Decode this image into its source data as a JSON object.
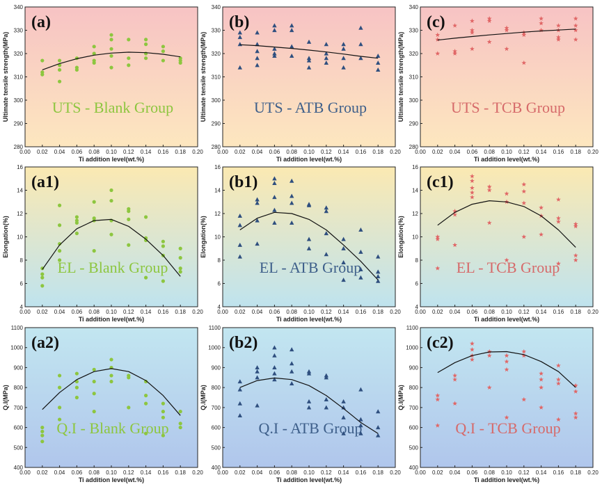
{
  "x_axis_title": "Ti addition level(wt.%)",
  "chart_data": [
    {
      "id": "a",
      "type": "scatter",
      "tag": "(a)",
      "label": "UTS - Blank Group",
      "ylabel": "Ultimate tensile strength(MPa)",
      "ylim": [
        280,
        340
      ],
      "yticks": [
        280,
        290,
        300,
        310,
        320,
        330,
        340
      ],
      "xlim": [
        0,
        0.2
      ],
      "xticks": [
        "0.00",
        "0.02",
        "0.04",
        "0.06",
        "0.08",
        "0.10",
        "0.12",
        "0.14",
        "0.16",
        "0.18",
        "0.20"
      ],
      "marker": "circle",
      "color": "#8dc63f",
      "label_color": "#8dc63f",
      "bg": [
        "#f7c3c4",
        "#fde7bf"
      ],
      "x": [
        0.02,
        0.02,
        0.02,
        0.04,
        0.04,
        0.04,
        0.04,
        0.06,
        0.06,
        0.06,
        0.08,
        0.08,
        0.08,
        0.08,
        0.1,
        0.1,
        0.1,
        0.1,
        0.1,
        0.12,
        0.12,
        0.12,
        0.14,
        0.14,
        0.14,
        0.14,
        0.16,
        0.16,
        0.16,
        0.18,
        0.18,
        0.18
      ],
      "y": [
        317,
        312,
        311,
        317,
        315,
        313,
        308,
        318,
        314,
        313,
        323,
        317,
        316,
        320,
        328,
        326,
        322,
        319,
        314,
        326,
        318,
        315,
        326,
        324,
        320,
        318,
        323,
        321,
        317,
        318,
        317,
        316
      ],
      "fit": {
        "x": [
          0.02,
          0.04,
          0.06,
          0.08,
          0.1,
          0.12,
          0.14,
          0.16,
          0.18
        ],
        "y": [
          313.0,
          315.7,
          317.8,
          319.3,
          320.2,
          320.6,
          320.4,
          319.7,
          318.6
        ]
      }
    },
    {
      "id": "b",
      "type": "scatter",
      "tag": "(b)",
      "label": "UTS - ATB Group",
      "ylabel": "Ultimate tensile strength(MPa)",
      "ylim": [
        280,
        340
      ],
      "yticks": [
        280,
        290,
        300,
        310,
        320,
        330,
        340
      ],
      "xlim": [
        0,
        0.2
      ],
      "xticks": [
        "0.00",
        "0.02",
        "0.04",
        "0.06",
        "0.08",
        "0.10",
        "0.12",
        "0.14",
        "0.16",
        "0.18",
        "0.20"
      ],
      "marker": "triangle",
      "color": "#2f4f7f",
      "label_color": "#3e5f8a",
      "bg": [
        "#f7c3c4",
        "#fde7bf"
      ],
      "x": [
        0.02,
        0.02,
        0.02,
        0.02,
        0.04,
        0.04,
        0.04,
        0.04,
        0.04,
        0.06,
        0.06,
        0.06,
        0.06,
        0.06,
        0.08,
        0.08,
        0.08,
        0.08,
        0.1,
        0.1,
        0.1,
        0.1,
        0.12,
        0.12,
        0.12,
        0.12,
        0.14,
        0.14,
        0.14,
        0.14,
        0.16,
        0.16,
        0.16,
        0.18,
        0.18,
        0.18
      ],
      "y": [
        329,
        327,
        324,
        314,
        329,
        324,
        321,
        318,
        315,
        332,
        330,
        322,
        320,
        319,
        332,
        330,
        323,
        319,
        325,
        318,
        317,
        314,
        324,
        320,
        318,
        316,
        324,
        322,
        318,
        314,
        331,
        324,
        318,
        319,
        316,
        313
      ],
      "fit": {
        "x": [
          0.02,
          0.04,
          0.06,
          0.08,
          0.1,
          0.12,
          0.14,
          0.16,
          0.18
        ],
        "y": [
          323.8,
          323.4,
          322.8,
          322.2,
          321.5,
          320.7,
          319.8,
          318.8,
          318.0
        ]
      }
    },
    {
      "id": "c",
      "type": "scatter",
      "tag": "(c)",
      "label": "UTS - TCB Group",
      "ylabel": "Ultimate tensile strength(MPa)",
      "ylim": [
        280,
        340
      ],
      "yticks": [
        280,
        290,
        300,
        310,
        320,
        330,
        340
      ],
      "xlim": [
        0,
        0.2
      ],
      "xticks": [
        "0.00",
        "0.02",
        "0.04",
        "0.06",
        "0.08",
        "0.10",
        "0.12",
        "0.14",
        "0.16",
        "0.18",
        "0.20"
      ],
      "marker": "star",
      "color": "#e06666",
      "label_color": "#d66a6a",
      "bg": [
        "#f7c3c4",
        "#fde7bf"
      ],
      "x": [
        0.02,
        0.02,
        0.02,
        0.04,
        0.04,
        0.04,
        0.06,
        0.06,
        0.06,
        0.06,
        0.08,
        0.08,
        0.08,
        0.1,
        0.1,
        0.1,
        0.12,
        0.12,
        0.12,
        0.14,
        0.14,
        0.14,
        0.16,
        0.16,
        0.16,
        0.16,
        0.18,
        0.18,
        0.18,
        0.18
      ],
      "y": [
        328,
        326,
        320,
        332,
        321,
        320,
        334,
        330,
        329,
        322,
        335,
        334,
        325,
        331,
        330,
        322,
        329,
        328,
        316,
        335,
        333,
        330,
        332,
        330,
        327,
        326,
        335,
        332,
        330,
        326
      ],
      "fit": {
        "x": [
          0.02,
          0.04,
          0.06,
          0.08,
          0.1,
          0.12,
          0.14,
          0.16,
          0.18
        ],
        "y": [
          325.8,
          326.6,
          327.3,
          328.0,
          328.6,
          329.2,
          329.7,
          330.1,
          330.5
        ]
      }
    },
    {
      "id": "a1",
      "type": "scatter",
      "tag": "(a1)",
      "label": "EL - Blank Group",
      "ylabel": "Elongation(%)",
      "ylim": [
        4,
        16
      ],
      "yticks": [
        4,
        6,
        8,
        10,
        12,
        14,
        16
      ],
      "xlim": [
        0,
        0.2
      ],
      "xticks": [
        "0.00",
        "0.02",
        "0.04",
        "0.06",
        "0.08",
        "0.10",
        "0.12",
        "0.14",
        "0.16",
        "0.18",
        "0.20"
      ],
      "marker": "circle",
      "color": "#8dc63f",
      "label_color": "#8dc63f",
      "bg": [
        "#fbe9b2",
        "#bfe3ee"
      ],
      "x": [
        0.02,
        0.02,
        0.02,
        0.02,
        0.04,
        0.04,
        0.04,
        0.04,
        0.04,
        0.06,
        0.06,
        0.06,
        0.06,
        0.08,
        0.08,
        0.08,
        0.08,
        0.1,
        0.1,
        0.1,
        0.1,
        0.12,
        0.12,
        0.12,
        0.12,
        0.14,
        0.14,
        0.14,
        0.14,
        0.16,
        0.16,
        0.16,
        0.16,
        0.18,
        0.18,
        0.18,
        0.18
      ],
      "y": [
        7.3,
        6.8,
        6.5,
        5.8,
        12.7,
        11.0,
        9.4,
        8.8,
        8.0,
        11.7,
        11.4,
        11.2,
        10.3,
        13.0,
        11.6,
        11.4,
        8.8,
        14.0,
        13.1,
        11.4,
        10.2,
        12.4,
        12.2,
        11.5,
        9.3,
        11.7,
        9.9,
        9.7,
        6.5,
        9.6,
        9.2,
        8.4,
        6.2,
        9.0,
        8.2,
        7.3,
        7.0
      ],
      "fit": {
        "x": [
          0.02,
          0.04,
          0.06,
          0.08,
          0.1,
          0.12,
          0.14,
          0.16,
          0.18
        ],
        "y": [
          7.2,
          9.3,
          10.7,
          11.4,
          11.5,
          10.9,
          9.8,
          8.4,
          6.6
        ]
      }
    },
    {
      "id": "b1",
      "type": "scatter",
      "tag": "(b1)",
      "label": "EL - ATB Group",
      "ylabel": "Elongation(%)",
      "ylim": [
        4,
        16
      ],
      "yticks": [
        4,
        6,
        8,
        10,
        12,
        14,
        16
      ],
      "xlim": [
        0,
        0.2
      ],
      "xticks": [
        "0.00",
        "0.02",
        "0.04",
        "0.06",
        "0.08",
        "0.10",
        "0.12",
        "0.14",
        "0.16",
        "0.18",
        "0.20"
      ],
      "marker": "triangle",
      "color": "#2f4f7f",
      "label_color": "#3e5f8a",
      "bg": [
        "#fbe9b2",
        "#bfe3ee"
      ],
      "x": [
        0.02,
        0.02,
        0.02,
        0.02,
        0.04,
        0.04,
        0.04,
        0.04,
        0.06,
        0.06,
        0.06,
        0.06,
        0.06,
        0.08,
        0.08,
        0.08,
        0.08,
        0.1,
        0.1,
        0.1,
        0.1,
        0.12,
        0.12,
        0.12,
        0.12,
        0.14,
        0.14,
        0.14,
        0.14,
        0.16,
        0.16,
        0.16,
        0.16,
        0.18,
        0.18,
        0.18,
        0.18
      ],
      "y": [
        11.8,
        11.0,
        9.3,
        8.3,
        13.2,
        12.9,
        11.4,
        9.4,
        15.0,
        14.6,
        13.4,
        12.3,
        11.2,
        14.8,
        13.5,
        12.9,
        11.2,
        12.8,
        12.7,
        9.8,
        9.0,
        12.5,
        12.2,
        10.3,
        8.5,
        9.8,
        9.0,
        7.8,
        6.3,
        10.6,
        8.7,
        7.2,
        6.5,
        8.3,
        7.0,
        6.6,
        6.2
      ],
      "fit": {
        "x": [
          0.02,
          0.04,
          0.06,
          0.08,
          0.1,
          0.12,
          0.14,
          0.16,
          0.18
        ],
        "y": [
          10.6,
          11.6,
          12.1,
          12.0,
          11.5,
          10.6,
          9.3,
          7.9,
          6.3
        ]
      }
    },
    {
      "id": "c1",
      "type": "scatter",
      "tag": "(c1)",
      "label": "EL - TCB Group",
      "ylabel": "Elongation(%)",
      "ylim": [
        4,
        16
      ],
      "yticks": [
        4,
        6,
        8,
        10,
        12,
        14,
        16
      ],
      "xlim": [
        0,
        0.2
      ],
      "xticks": [
        "0.00",
        "0.02",
        "0.04",
        "0.06",
        "0.08",
        "0.10",
        "0.12",
        "0.14",
        "0.16",
        "0.18",
        "0.20"
      ],
      "marker": "star",
      "color": "#e06666",
      "label_color": "#d66a6a",
      "bg": [
        "#fbe9b2",
        "#bfe3ee"
      ],
      "x": [
        0.02,
        0.02,
        0.02,
        0.04,
        0.04,
        0.04,
        0.06,
        0.06,
        0.06,
        0.06,
        0.06,
        0.08,
        0.08,
        0.08,
        0.1,
        0.1,
        0.1,
        0.12,
        0.12,
        0.12,
        0.12,
        0.14,
        0.14,
        0.14,
        0.16,
        0.16,
        0.16,
        0.16,
        0.18,
        0.18,
        0.18,
        0.18
      ],
      "y": [
        10.0,
        9.8,
        7.3,
        12.2,
        11.9,
        9.3,
        15.2,
        14.8,
        14.2,
        13.8,
        13.4,
        14.3,
        14.0,
        11.2,
        13.7,
        13.0,
        8.0,
        14.5,
        13.9,
        12.9,
        10.0,
        12.5,
        11.8,
        10.2,
        13.2,
        11.6,
        11.3,
        7.7,
        11.1,
        10.9,
        8.4,
        8.0
      ],
      "fit": {
        "x": [
          0.02,
          0.04,
          0.06,
          0.08,
          0.1,
          0.12,
          0.14,
          0.16,
          0.18
        ],
        "y": [
          11.0,
          12.1,
          12.8,
          13.1,
          13.0,
          12.6,
          11.8,
          10.6,
          9.1
        ]
      }
    },
    {
      "id": "a2",
      "type": "scatter",
      "tag": "(a2)",
      "label": "Q.I - Blank Group",
      "ylabel": "Q.I(MPa)",
      "ylim": [
        400,
        1100
      ],
      "yticks": [
        400,
        500,
        600,
        700,
        800,
        900,
        1000,
        1100
      ],
      "xlim": [
        0,
        0.2
      ],
      "xticks": [
        "0.00",
        "0.02",
        "0.04",
        "0.06",
        "0.08",
        "0.10",
        "0.12",
        "0.14",
        "0.16",
        "0.18",
        "0.20"
      ],
      "marker": "circle",
      "color": "#8dc63f",
      "label_color": "#8dc63f",
      "bg": [
        "#c2e6f0",
        "#b0c6ec"
      ],
      "x": [
        0.02,
        0.02,
        0.02,
        0.02,
        0.04,
        0.04,
        0.04,
        0.04,
        0.06,
        0.06,
        0.06,
        0.06,
        0.08,
        0.08,
        0.08,
        0.08,
        0.1,
        0.1,
        0.1,
        0.1,
        0.12,
        0.12,
        0.12,
        0.14,
        0.14,
        0.14,
        0.14,
        0.16,
        0.16,
        0.16,
        0.16,
        0.18,
        0.18,
        0.18
      ],
      "y": [
        600,
        580,
        560,
        530,
        860,
        800,
        700,
        640,
        870,
        830,
        800,
        750,
        890,
        830,
        770,
        680,
        940,
        900,
        860,
        830,
        860,
        850,
        700,
        830,
        760,
        720,
        570,
        720,
        680,
        650,
        560,
        680,
        620,
        600
      ],
      "fit": {
        "x": [
          0.02,
          0.04,
          0.06,
          0.08,
          0.1,
          0.12,
          0.14,
          0.16,
          0.18
        ],
        "y": [
          690,
          775,
          840,
          880,
          895,
          880,
          835,
          760,
          660
        ]
      }
    },
    {
      "id": "b2",
      "type": "scatter",
      "tag": "(b2)",
      "label": "Q.I - ATB Group",
      "ylabel": "Q.I(MPa)",
      "ylim": [
        400,
        1100
      ],
      "yticks": [
        400,
        500,
        600,
        700,
        800,
        900,
        1000,
        1100
      ],
      "xlim": [
        0,
        0.2
      ],
      "xticks": [
        "0.00",
        "0.02",
        "0.04",
        "0.06",
        "0.08",
        "0.10",
        "0.12",
        "0.14",
        "0.16",
        "0.18",
        "0.20"
      ],
      "marker": "triangle",
      "color": "#2f4f7f",
      "label_color": "#3e5f8a",
      "bg": [
        "#c2e6f0",
        "#b0c6ec"
      ],
      "x": [
        0.02,
        0.02,
        0.02,
        0.02,
        0.04,
        0.04,
        0.04,
        0.04,
        0.06,
        0.06,
        0.06,
        0.06,
        0.06,
        0.08,
        0.08,
        0.08,
        0.08,
        0.1,
        0.1,
        0.1,
        0.1,
        0.12,
        0.12,
        0.12,
        0.12,
        0.14,
        0.14,
        0.14,
        0.14,
        0.16,
        0.16,
        0.16,
        0.16,
        0.18,
        0.18,
        0.18
      ],
      "y": [
        830,
        790,
        720,
        660,
        900,
        880,
        850,
        710,
        1000,
        960,
        900,
        870,
        840,
        990,
        920,
        880,
        820,
        880,
        870,
        730,
        700,
        860,
        850,
        740,
        700,
        730,
        700,
        650,
        570,
        790,
        640,
        610,
        570,
        680,
        600,
        560
      ],
      "fit": {
        "x": [
          0.02,
          0.04,
          0.06,
          0.08,
          0.1,
          0.12,
          0.14,
          0.16,
          0.18
        ],
        "y": [
          800,
          835,
          848,
          840,
          810,
          760,
          695,
          625,
          570
        ]
      }
    },
    {
      "id": "c2",
      "type": "scatter",
      "tag": "(c2)",
      "label": "Q.I - TCB Group",
      "ylabel": "Q.I(MPa)",
      "ylim": [
        400,
        1100
      ],
      "yticks": [
        400,
        500,
        600,
        700,
        800,
        900,
        1000,
        1100
      ],
      "xlim": [
        0,
        0.2
      ],
      "xticks": [
        "0.00",
        "0.02",
        "0.04",
        "0.06",
        "0.08",
        "0.10",
        "0.12",
        "0.14",
        "0.16",
        "0.18",
        "0.20"
      ],
      "marker": "star",
      "color": "#e06666",
      "label_color": "#d66a6a",
      "bg": [
        "#c2e6f0",
        "#b0c6ec"
      ],
      "x": [
        0.02,
        0.02,
        0.02,
        0.04,
        0.04,
        0.04,
        0.06,
        0.06,
        0.06,
        0.06,
        0.08,
        0.08,
        0.08,
        0.1,
        0.1,
        0.1,
        0.1,
        0.12,
        0.12,
        0.12,
        0.14,
        0.14,
        0.14,
        0.14,
        0.16,
        0.16,
        0.16,
        0.16,
        0.18,
        0.18,
        0.18,
        0.18
      ],
      "y": [
        760,
        740,
        610,
        860,
        840,
        720,
        1020,
        990,
        960,
        940,
        980,
        960,
        800,
        960,
        930,
        890,
        650,
        980,
        960,
        740,
        870,
        840,
        800,
        700,
        910,
        840,
        820,
        640,
        810,
        780,
        670,
        650
      ],
      "fit": {
        "x": [
          0.02,
          0.04,
          0.06,
          0.08,
          0.1,
          0.12,
          0.14,
          0.16,
          0.18
        ],
        "y": [
          875,
          925,
          960,
          978,
          980,
          965,
          930,
          880,
          800
        ]
      }
    }
  ]
}
